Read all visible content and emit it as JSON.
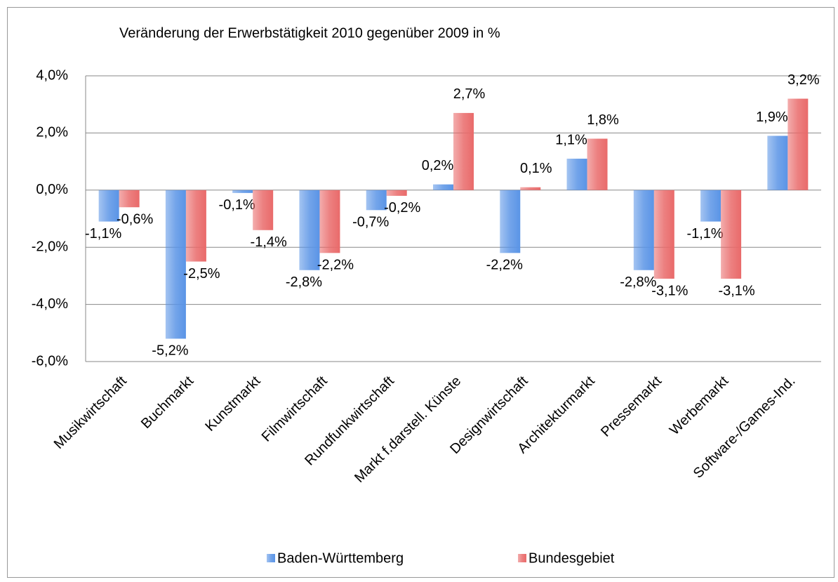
{
  "chart_data": {
    "type": "bar",
    "title": "Veränderung der Erwerbstätigkeit 2010 gegenüber 2009 in %",
    "categories": [
      "Musikwirtschaft",
      "Buchmarkt",
      "Kunstmarkt",
      "Filmwirtschaft",
      "Rundfunkwirtschaft",
      "Markt f.darstell. Künste",
      "Designwirtschaft",
      "Architekturmarkt",
      "Pressemarkt",
      "Werbemarkt",
      "Software-/Games-Ind."
    ],
    "series": [
      {
        "name": "Baden-Württemberg",
        "color": "#5a94e6",
        "values": [
          -1.1,
          -5.2,
          -0.1,
          -2.8,
          -0.7,
          0.2,
          -2.2,
          1.1,
          -2.8,
          -1.1,
          1.9
        ],
        "value_labels": [
          "-1,1%",
          "-5,2%",
          "-0,1%",
          "-2,8%",
          "-0,7%",
          "0,2%",
          "-2,2%",
          "1,1%",
          "-2,8%",
          "-1,1%",
          "1,9%"
        ]
      },
      {
        "name": "Bundesgebiet",
        "color": "#e96a6a",
        "values": [
          -0.6,
          -2.5,
          -1.4,
          -2.2,
          -0.2,
          2.7,
          0.1,
          1.8,
          -3.1,
          -3.1,
          3.2
        ],
        "value_labels": [
          "-0,6%",
          "-2,5%",
          "-1,4%",
          "-2,2%",
          "-0,2%",
          "2,7%",
          "0,1%",
          "1,8%",
          "-3,1%",
          "-3,1%",
          "3,2%"
        ]
      }
    ],
    "ylim": [
      -6,
      4
    ],
    "yticks": [
      {
        "value": -6,
        "label": "-6,0%"
      },
      {
        "value": -4,
        "label": "-4,0%"
      },
      {
        "value": -2,
        "label": "-2,0%"
      },
      {
        "value": 0,
        "label": "0,0%"
      },
      {
        "value": 2,
        "label": "2,0%"
      },
      {
        "value": 4,
        "label": "4,0%"
      }
    ],
    "grid": true,
    "legend": "bottom"
  }
}
